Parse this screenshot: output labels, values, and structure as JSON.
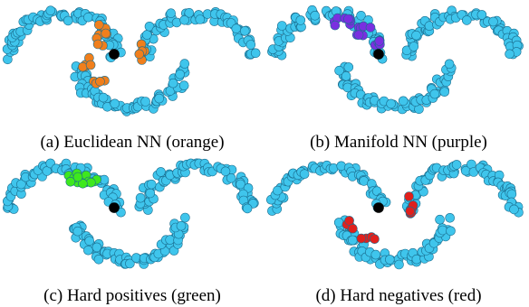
{
  "figure": {
    "panels": [
      {
        "id": "a",
        "caption": "(a) Euclidean NN (orange)",
        "highlight": "euclidean-nn",
        "highlight_color": "#f07f1c"
      },
      {
        "id": "b",
        "caption": "(b) Manifold NN (purple)",
        "highlight": "manifold-nn",
        "highlight_color": "#7a2fe0"
      },
      {
        "id": "c",
        "caption": "(c) Hard positives (green)",
        "highlight": "hard-positives",
        "highlight_color": "#3ee81e"
      },
      {
        "id": "d",
        "caption": "(d) Hard negatives (red)",
        "highlight": "hard-negatives",
        "highlight_color": "#e0201c"
      }
    ],
    "colors": {
      "base": "#3fc5ec",
      "outline": "#1a6d8f",
      "query": "#000000"
    }
  }
}
